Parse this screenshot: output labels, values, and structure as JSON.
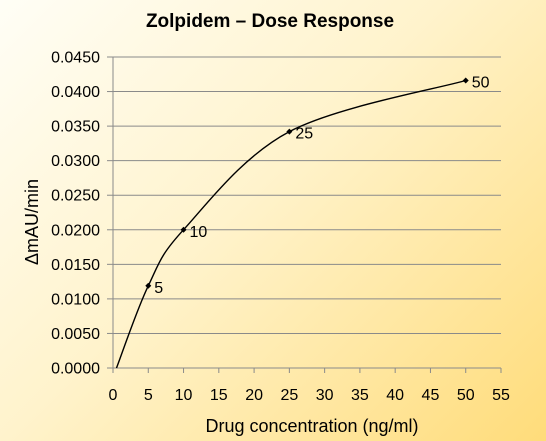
{
  "chart_data": {
    "type": "scatter",
    "title": "Zolpidem – Dose Response",
    "xlabel": "Drug concentration (ng/ml)",
    "ylabel": "ΔmAU/min",
    "xlim": [
      0,
      55
    ],
    "ylim": [
      0,
      0.045
    ],
    "x_ticks": [
      "0",
      "5",
      "10",
      "15",
      "20",
      "25",
      "30",
      "35",
      "40",
      "45",
      "50",
      "55"
    ],
    "y_ticks": [
      "0.0000",
      "0.0050",
      "0.0100",
      "0.0150",
      "0.0200",
      "0.0250",
      "0.0300",
      "0.0350",
      "0.0400",
      "0.0450"
    ],
    "grid": "horizontal",
    "smoothed_line": true,
    "line_color": "#000000",
    "points": [
      {
        "x": 0.5,
        "y": 0.0,
        "label": ""
      },
      {
        "x": 5,
        "y": 0.0119,
        "label": "5"
      },
      {
        "x": 10,
        "y": 0.02,
        "label": "10"
      },
      {
        "x": 25,
        "y": 0.0342,
        "label": "25"
      },
      {
        "x": 50,
        "y": 0.0416,
        "label": "50"
      }
    ]
  }
}
